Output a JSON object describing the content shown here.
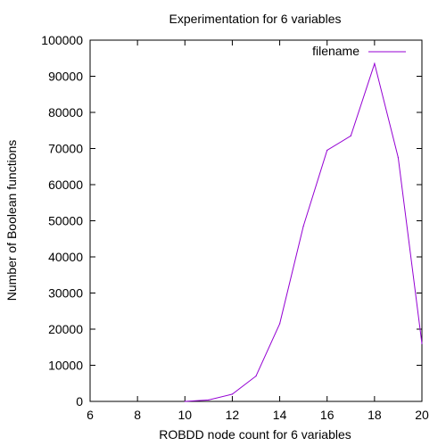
{
  "chart_data": {
    "type": "line",
    "title": "Experimentation for 6 variables",
    "xlabel": "ROBDD node count for 6 variables",
    "ylabel": "Number of Boolean functions",
    "xlim": [
      6,
      20
    ],
    "ylim": [
      0,
      100000
    ],
    "xticks": [
      "6",
      "8",
      "10",
      "12",
      "14",
      "16",
      "18",
      "20"
    ],
    "yticks": [
      "0",
      "10000",
      "20000",
      "30000",
      "40000",
      "50000",
      "60000",
      "70000",
      "80000",
      "90000",
      "100000"
    ],
    "grid": false,
    "legend_position": "top-right",
    "series": [
      {
        "name": "filename",
        "color": "#9400d3",
        "x": [
          10,
          11,
          12,
          13,
          14,
          15,
          16,
          17,
          18,
          19,
          20
        ],
        "y": [
          0,
          400,
          2000,
          7000,
          21500,
          48500,
          69500,
          73500,
          93500,
          67500,
          16000
        ]
      }
    ]
  }
}
